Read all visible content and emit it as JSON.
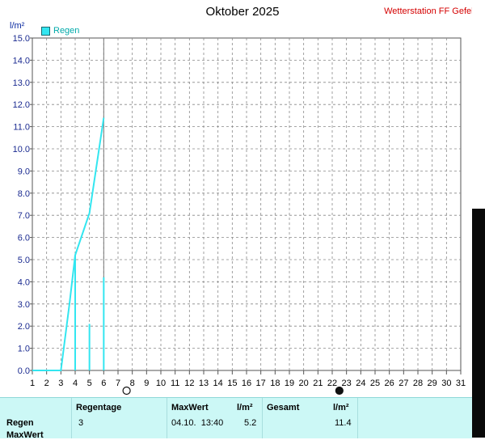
{
  "title": "Oktober 2025",
  "station": "Wetterstation FF Gefell",
  "chart_data": {
    "type": "line",
    "title": "Oktober 2025",
    "ylabel": "l/m²",
    "xlabel": "",
    "ylim": [
      0,
      15
    ],
    "xlim": [
      1,
      31
    ],
    "yticks": [
      0,
      1,
      2,
      3,
      4,
      5,
      6,
      7,
      8,
      9,
      10,
      11,
      12,
      13,
      14,
      15
    ],
    "xticks": [
      1,
      2,
      3,
      4,
      5,
      6,
      7,
      8,
      9,
      10,
      11,
      12,
      13,
      14,
      15,
      16,
      17,
      18,
      19,
      20,
      21,
      22,
      23,
      24,
      25,
      26,
      27,
      28,
      29,
      30,
      31
    ],
    "grid": true,
    "legend": "top-left",
    "current_day_marker": 6,
    "series": [
      {
        "name": "Regen",
        "color": "#33e6f0",
        "cumulative": [
          [
            1,
            0
          ],
          [
            3,
            0
          ],
          [
            3.6,
            3.0
          ],
          [
            4,
            5.2
          ],
          [
            5,
            7.1
          ],
          [
            6,
            11.4
          ]
        ],
        "daily_bars": [
          [
            4,
            5.2
          ],
          [
            5,
            2.1
          ],
          [
            6,
            4.2
          ]
        ]
      }
    ],
    "moon_phases": [
      {
        "day": 7.6,
        "phase": "full-moon-icon"
      },
      {
        "day": 22.5,
        "phase": "new-moon-icon"
      }
    ]
  },
  "table": {
    "headers": {
      "regentage": "Regentage",
      "maxwert": "MaxWert",
      "maxwert_unit": "l/m²",
      "gesamt": "Gesamt",
      "gesamt_unit": "l/m²"
    },
    "rows": [
      {
        "label": "Regen",
        "regentage": "3",
        "maxwert_time": "04.10.  13:40",
        "maxwert_value": "5.2",
        "gesamt_value": "11.4"
      },
      {
        "label": "MaxWert"
      }
    ]
  }
}
